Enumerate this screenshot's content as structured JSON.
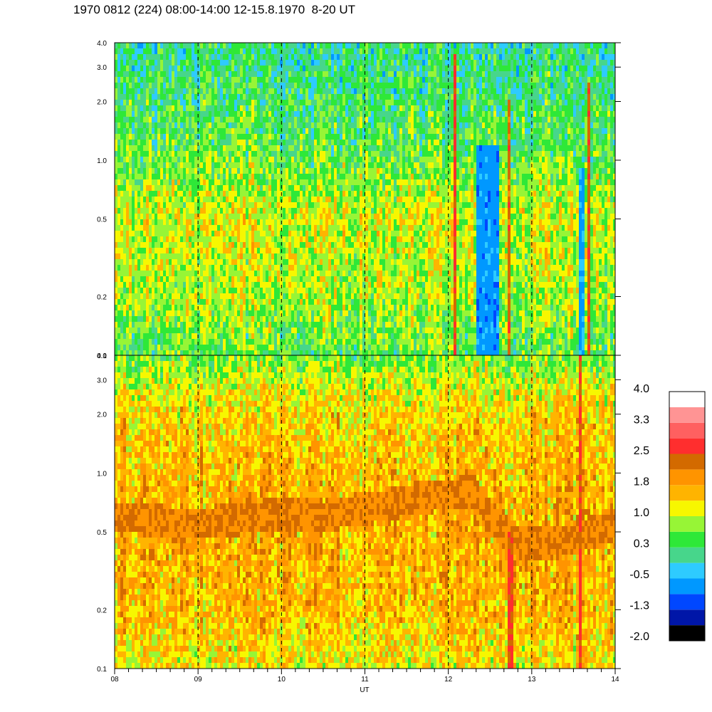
{
  "title": "1970 0812 (224) 08:00-14:00 12-15.8.1970  8-20 UT",
  "chart_data": {
    "type": "heatmap",
    "x_label": "UT",
    "x_ticks": [
      "08",
      "09",
      "10",
      "11",
      "12",
      "13",
      "14"
    ],
    "x_range": [
      8,
      14
    ],
    "y_scale": "log",
    "y_range": [
      0.1,
      4.0
    ],
    "y_ticks": [
      "0.1",
      "0.2",
      "0.5",
      "1.0",
      "2.0",
      "3.0",
      "4.0"
    ],
    "y_tick_values": [
      0.1,
      0.2,
      0.5,
      1.0,
      2.0,
      3.0,
      4.0
    ],
    "grid": "dashed vertical lines at each hour",
    "panels": [
      {
        "name": "upper",
        "dominant_level": 0.6,
        "profile": [
          [
            0.1,
            0.5
          ],
          [
            0.2,
            0.9
          ],
          [
            0.5,
            1.1
          ],
          [
            1.0,
            0.6
          ],
          [
            2.0,
            0.3
          ],
          [
            4.0,
            0.1
          ]
        ],
        "features": [
          {
            "x_start": 12.33,
            "x_end": 12.62,
            "level": -0.7,
            "y_top": 1.2
          },
          {
            "x_start": 12.06,
            "x_end": 12.09,
            "level": 2.6,
            "y_top": 3.5
          },
          {
            "x_start": 12.72,
            "x_end": 12.76,
            "level": 2.3,
            "y_top": 2.0
          },
          {
            "x_start": 13.55,
            "x_end": 13.62,
            "level": -0.6,
            "y_top": 0.9
          },
          {
            "x_start": 13.68,
            "x_end": 13.71,
            "level": 2.4,
            "y_top": 2.5
          }
        ]
      },
      {
        "name": "lower",
        "dominant_level": 1.5,
        "band_level": 2.1,
        "band_center": [
          [
            8.0,
            0.6
          ],
          [
            8.5,
            0.57
          ],
          [
            9.0,
            0.55
          ],
          [
            9.5,
            0.58
          ],
          [
            10.0,
            0.62
          ],
          [
            10.5,
            0.6
          ],
          [
            11.0,
            0.66
          ],
          [
            11.5,
            0.72
          ],
          [
            12.0,
            0.78
          ],
          [
            12.3,
            0.8
          ],
          [
            12.5,
            0.6
          ],
          [
            12.8,
            0.45
          ],
          [
            13.0,
            0.43
          ],
          [
            13.5,
            0.46
          ],
          [
            14.0,
            0.55
          ]
        ],
        "profile": [
          [
            0.1,
            1.2
          ],
          [
            0.2,
            1.6
          ],
          [
            0.5,
            1.7
          ],
          [
            1.0,
            1.6
          ],
          [
            2.0,
            1.4
          ],
          [
            3.0,
            1.0
          ],
          [
            4.0,
            0.6
          ]
        ],
        "features": [
          {
            "x_start": 12.7,
            "x_end": 12.77,
            "level": 2.6,
            "y_top": 0.5
          },
          {
            "x_start": 13.56,
            "x_end": 13.6,
            "level": 2.6,
            "y_top": 4.0
          },
          {
            "x_start": 13.72,
            "x_end": 13.75,
            "level": 2.6,
            "y_top": 1.5
          }
        ]
      }
    ],
    "colorbar": {
      "labels": [
        "4.0",
        "3.3",
        "2.5",
        "1.8",
        "1.0",
        "0.3",
        "-0.5",
        "-1.3",
        "-2.0"
      ],
      "min": -2.0,
      "max": 4.0,
      "colors": [
        "#000000",
        "#0016a8",
        "#0047ff",
        "#0098ff",
        "#2ecbff",
        "#47d68b",
        "#2ee838",
        "#97f536",
        "#f7f700",
        "#ffb400",
        "#ff9400",
        "#d36a00",
        "#ff2e2e",
        "#ff6060",
        "#ff9494",
        "#ffffff"
      ]
    }
  }
}
